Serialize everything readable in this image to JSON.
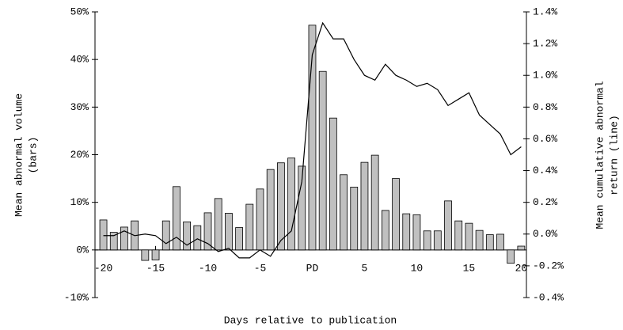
{
  "chart_data": {
    "type": "bar",
    "xlabel": "Days relative to publication",
    "ylabel": [
      "Mean abnormal volume",
      "(bars)"
    ],
    "y2label": [
      "Mean cumulative abnormal",
      "return (line)"
    ],
    "x": [
      -20,
      -19,
      -18,
      -17,
      -16,
      -15,
      -14,
      -13,
      -12,
      -11,
      -10,
      -9,
      -8,
      -7,
      -6,
      -5,
      -4,
      -3,
      -2,
      -1,
      0,
      1,
      2,
      3,
      4,
      5,
      6,
      7,
      8,
      9,
      10,
      11,
      12,
      13,
      14,
      15,
      16,
      17,
      18,
      19,
      20
    ],
    "xlim": [
      -20.8,
      20.5
    ],
    "xticks": [
      -20,
      -15,
      -10,
      -5,
      {
        "value": 0,
        "label": "PD"
      },
      5,
      10,
      15,
      20
    ],
    "ylim": [
      -10,
      50
    ],
    "yticks": [
      {
        "value": -10,
        "label": "-10%"
      },
      {
        "value": 0,
        "label": "0%"
      },
      {
        "value": 10,
        "label": "10%"
      },
      {
        "value": 20,
        "label": "20%"
      },
      {
        "value": 30,
        "label": "30%"
      },
      {
        "value": 40,
        "label": "40%"
      },
      {
        "value": 50,
        "label": "50%"
      }
    ],
    "y2lim": [
      -0.4,
      1.4
    ],
    "y2ticks": [
      {
        "value": -0.4,
        "label": "-0.4%"
      },
      {
        "value": -0.2,
        "label": "-0.2%"
      },
      {
        "value": 0,
        "label": "0.0%"
      },
      {
        "value": 0.2,
        "label": "0.2%"
      },
      {
        "value": 0.4,
        "label": "0.4%"
      },
      {
        "value": 0.6,
        "label": "0.6%"
      },
      {
        "value": 0.8,
        "label": "0.8%"
      },
      {
        "value": 1.0,
        "label": "1.0%"
      },
      {
        "value": 1.2,
        "label": "1.2%"
      },
      {
        "value": 1.4,
        "label": "1.4%"
      }
    ],
    "series": [
      {
        "type": "bar",
        "color": "#c0c0c0",
        "values": [
          6.3,
          3.7,
          4.8,
          6.1,
          -2.2,
          -2.1,
          6.1,
          13.3,
          5.9,
          5.1,
          7.8,
          10.8,
          7.7,
          4.7,
          9.6,
          12.8,
          16.9,
          18.3,
          19.3,
          17.6,
          47.2,
          37.5,
          27.7,
          15.8,
          13.2,
          18.4,
          19.9,
          8.3,
          15.0,
          7.6,
          7.4,
          4.0,
          4.0,
          10.3,
          6.1,
          5.6,
          4.1,
          3.2,
          3.3,
          -2.8,
          0.8
        ]
      },
      {
        "type": "line",
        "axis": "y2",
        "color": "#000000",
        "values": [
          -0.01,
          -0.01,
          0.02,
          -0.01,
          0.0,
          -0.01,
          -0.06,
          -0.02,
          -0.07,
          -0.03,
          -0.06,
          -0.11,
          -0.09,
          -0.15,
          -0.15,
          -0.1,
          -0.14,
          -0.04,
          0.02,
          0.33,
          1.13,
          1.33,
          1.23,
          1.23,
          1.1,
          1.0,
          0.97,
          1.07,
          1.0,
          0.97,
          0.93,
          0.95,
          0.91,
          0.81,
          0.85,
          0.89,
          0.75,
          0.69,
          0.63,
          0.5,
          0.55
        ]
      }
    ]
  }
}
